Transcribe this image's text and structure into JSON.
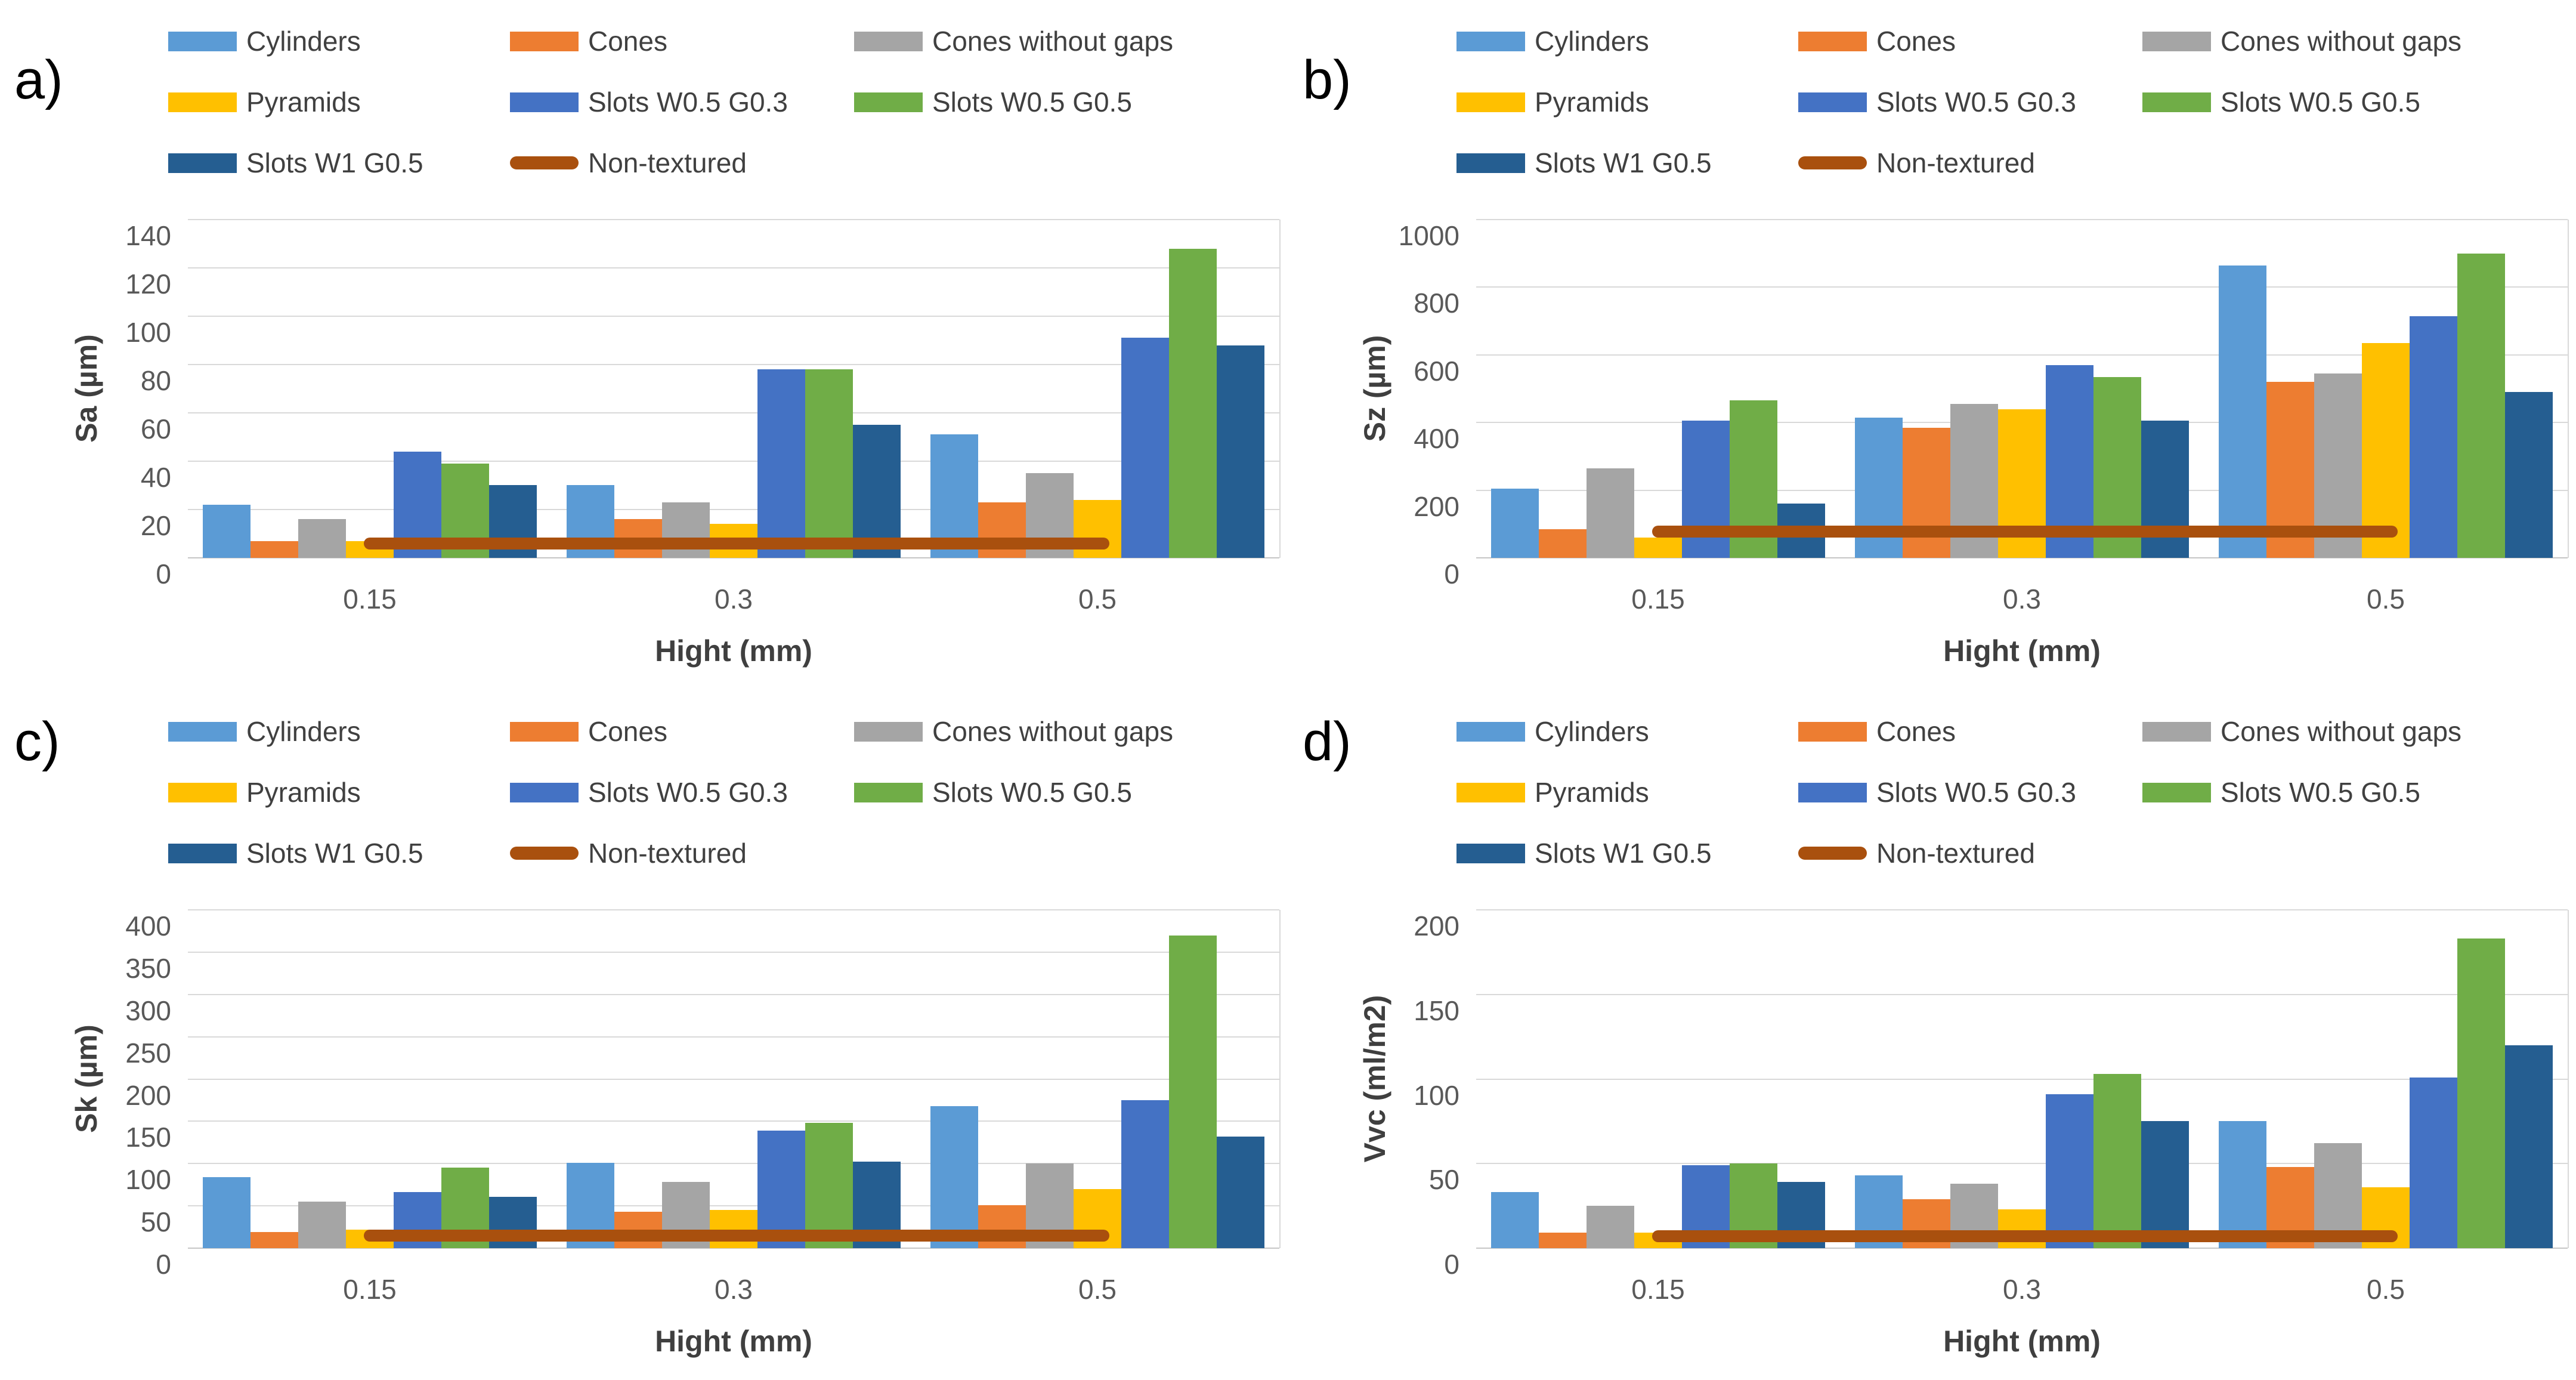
{
  "page": {
    "background": "#FFFFFF"
  },
  "x_axis_label": "Hight (mm)",
  "categories": [
    "0.15",
    "0.3",
    "0.5"
  ],
  "legend": {
    "items": [
      {
        "label": "Cylinders",
        "color": "#5B9BD5",
        "type": "bar"
      },
      {
        "label": "Cones",
        "color": "#ED7D31",
        "type": "bar"
      },
      {
        "label": "Cones without gaps",
        "color": "#A5A5A5",
        "type": "bar"
      },
      {
        "label": "Pyramids",
        "color": "#FFC000",
        "type": "bar"
      },
      {
        "label": "Slots W0.5 G0.3",
        "color": "#4472C4",
        "type": "bar"
      },
      {
        "label": "Slots W0.5 G0.5",
        "color": "#70AD47",
        "type": "bar"
      },
      {
        "label": "Slots W1 G0.5",
        "color": "#255E91",
        "type": "bar"
      },
      {
        "label": "Non-textured",
        "color": "#A9500E",
        "type": "line"
      }
    ]
  },
  "chart_data": [
    {
      "panel": "a)",
      "type": "bar",
      "ylabel": "Sa (µm)",
      "xlabel": "Hight (mm)",
      "categories": [
        "0.15",
        "0.3",
        "0.5"
      ],
      "ylim": [
        0,
        140
      ],
      "ytick": 20,
      "grid": true,
      "legend_position": "top",
      "series": [
        {
          "name": "Cylinders",
          "values": [
            22,
            30,
            51
          ]
        },
        {
          "name": "Cones",
          "values": [
            7,
            16,
            23
          ]
        },
        {
          "name": "Cones without gaps",
          "values": [
            16,
            23,
            35
          ]
        },
        {
          "name": "Pyramids",
          "values": [
            7,
            14,
            24
          ]
        },
        {
          "name": "Slots W0.5 G0.3",
          "values": [
            44,
            78,
            91
          ]
        },
        {
          "name": "Slots W0.5 G0.5",
          "values": [
            39,
            78,
            128
          ]
        },
        {
          "name": "Slots W1 G0.5",
          "values": [
            30,
            55,
            88
          ]
        }
      ],
      "line_series": {
        "name": "Non-textured",
        "value": 6
      }
    },
    {
      "panel": "b)",
      "type": "bar",
      "ylabel": "Sz (µm)",
      "xlabel": "Hight (mm)",
      "categories": [
        "0.15",
        "0.3",
        "0.5"
      ],
      "ylim": [
        0,
        1000
      ],
      "ytick": 200,
      "grid": true,
      "legend_position": "top",
      "series": [
        {
          "name": "Cylinders",
          "values": [
            205,
            415,
            865
          ]
        },
        {
          "name": "Cones",
          "values": [
            85,
            385,
            520
          ]
        },
        {
          "name": "Cones without gaps",
          "values": [
            265,
            455,
            545
          ]
        },
        {
          "name": "Pyramids",
          "values": [
            60,
            440,
            635
          ]
        },
        {
          "name": "Slots W0.5 G0.3",
          "values": [
            405,
            570,
            715
          ]
        },
        {
          "name": "Slots W0.5 G0.5",
          "values": [
            465,
            535,
            900
          ]
        },
        {
          "name": "Slots W1 G0.5",
          "values": [
            160,
            405,
            490
          ]
        }
      ],
      "line_series": {
        "name": "Non-textured",
        "value": 78
      }
    },
    {
      "panel": "c)",
      "type": "bar",
      "ylabel": "Sk (µm)",
      "xlabel": "Hight (mm)",
      "categories": [
        "0.15",
        "0.3",
        "0.5"
      ],
      "ylim": [
        0,
        400
      ],
      "ytick": 50,
      "grid": true,
      "legend_position": "top",
      "series": [
        {
          "name": "Cylinders",
          "values": [
            84,
            101,
            168
          ]
        },
        {
          "name": "Cones",
          "values": [
            19,
            43,
            51
          ]
        },
        {
          "name": "Cones without gaps",
          "values": [
            55,
            78,
            100
          ]
        },
        {
          "name": "Pyramids",
          "values": [
            22,
            45,
            70
          ]
        },
        {
          "name": "Slots W0.5 G0.3",
          "values": [
            66,
            139,
            175
          ]
        },
        {
          "name": "Slots W0.5 G0.5",
          "values": [
            95,
            148,
            370
          ]
        },
        {
          "name": "Slots W1 G0.5",
          "values": [
            61,
            102,
            132
          ]
        }
      ],
      "line_series": {
        "name": "Non-textured",
        "value": 15
      }
    },
    {
      "panel": "d)",
      "type": "bar",
      "ylabel": "Vvc (ml/m2)",
      "xlabel": "Hight (mm)",
      "categories": [
        "0.15",
        "0.3",
        "0.5"
      ],
      "ylim": [
        0,
        200
      ],
      "ytick": 50,
      "grid": true,
      "legend_position": "top",
      "series": [
        {
          "name": "Cylinders",
          "values": [
            33,
            43,
            75
          ]
        },
        {
          "name": "Cones",
          "values": [
            9,
            29,
            48
          ]
        },
        {
          "name": "Cones without gaps",
          "values": [
            25,
            38,
            62
          ]
        },
        {
          "name": "Pyramids",
          "values": [
            9,
            23,
            36
          ]
        },
        {
          "name": "Slots W0.5 G0.3",
          "values": [
            49,
            91,
            101
          ]
        },
        {
          "name": "Slots W0.5 G0.5",
          "values": [
            50,
            103,
            183
          ]
        },
        {
          "name": "Slots W1 G0.5",
          "values": [
            39,
            75,
            120
          ]
        }
      ],
      "line_series": {
        "name": "Non-textured",
        "value": 7
      }
    }
  ]
}
